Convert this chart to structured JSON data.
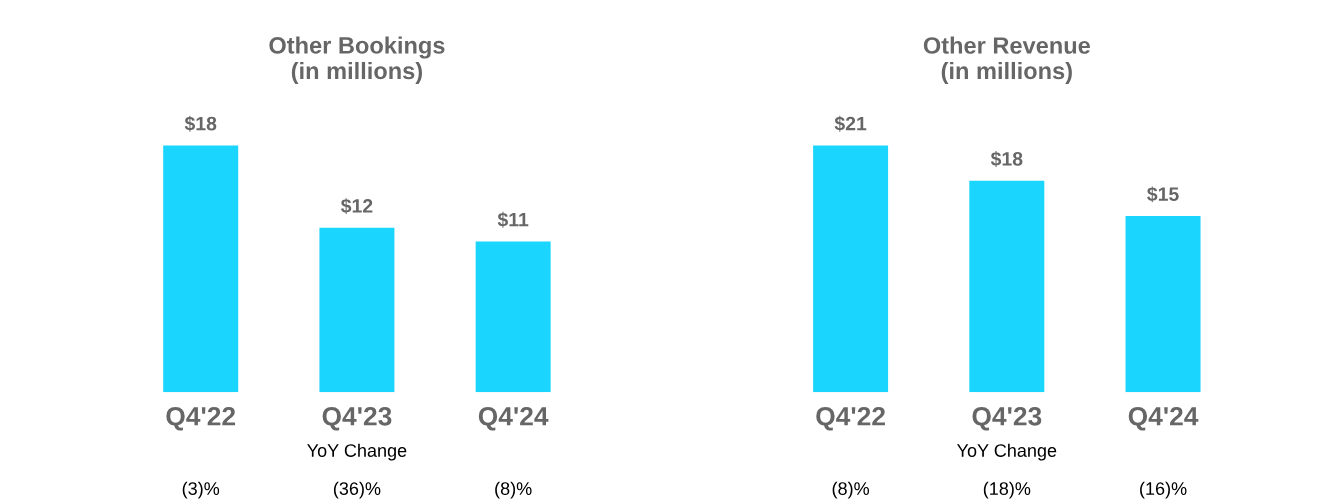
{
  "chart_data": [
    {
      "type": "bar",
      "title": "Other Bookings\n(in millions)",
      "categories": [
        "Q4'22",
        "Q4'23",
        "Q4'24"
      ],
      "values": [
        18,
        12,
        11
      ],
      "color": "#1ad6fe",
      "value_labels": [
        "$18",
        "$12",
        "$11"
      ],
      "annotations": [
        "YoY Change",
        "(3)%",
        "(36)%",
        "(8)%"
      ]
    },
    {
      "type": "bar",
      "title": "Other Revenue\n(in millions)",
      "categories": [
        "Q4'22",
        "Q4'23",
        "Q4'24"
      ],
      "values": [
        21,
        18,
        15
      ],
      "color": "#1ad6fe",
      "value_labels": [
        "$21",
        "$18",
        "$15"
      ],
      "annotations": [
        "YoY Change",
        "(8)%",
        "(18)%",
        "(16)%"
      ]
    }
  ]
}
